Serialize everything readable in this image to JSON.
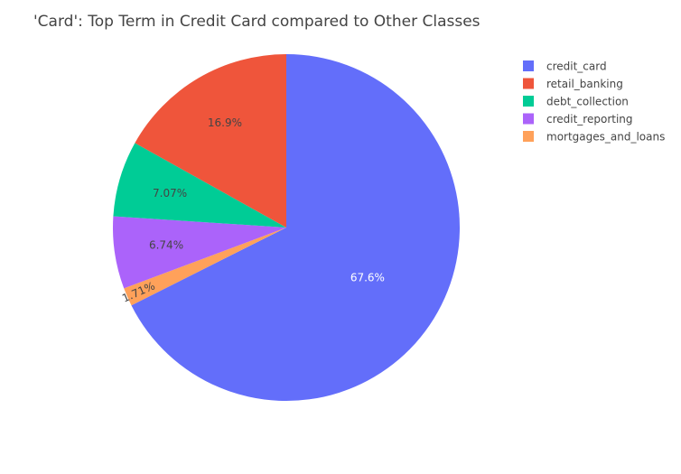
{
  "chart_data": {
    "type": "pie",
    "title": "'Card': Top Term in Credit Card compared to Other Classes",
    "labels": [
      "credit_card",
      "retail_banking",
      "debt_collection",
      "credit_reporting",
      "mortgages_and_loans"
    ],
    "values": [
      67.6,
      16.9,
      7.07,
      6.74,
      1.71
    ],
    "value_labels": [
      "67.6%",
      "16.9%",
      "7.07%",
      "6.74%",
      "1.71%"
    ],
    "colors": [
      "#636efa",
      "#ef553b",
      "#00cc96",
      "#ab63fa",
      "#ffa15a"
    ],
    "label_colors": [
      "#ffffff",
      "#444444",
      "#444444",
      "#444444",
      "#444444"
    ],
    "slice_order": [
      0,
      4,
      3,
      2,
      1
    ],
    "direction": "clockwise",
    "start_at": "top",
    "legend_position": "top-right"
  }
}
